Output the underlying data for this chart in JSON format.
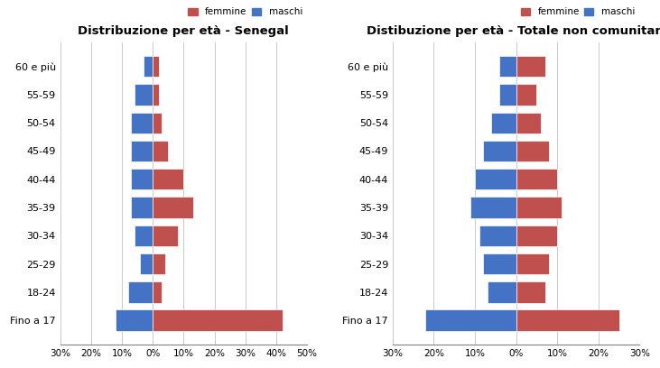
{
  "categories": [
    "Fino a 17",
    "18-24",
    "25-29",
    "30-34",
    "35-39",
    "40-44",
    "45-49",
    "50-54",
    "55-59",
    "60 e più"
  ],
  "senegal_maschi": [
    12,
    8,
    4,
    6,
    7,
    7,
    7,
    7,
    6,
    3
  ],
  "senegal_femmine": [
    42,
    3,
    4,
    8,
    13,
    10,
    5,
    3,
    2,
    2
  ],
  "totale_maschi": [
    22,
    7,
    8,
    9,
    11,
    10,
    8,
    6,
    4,
    4
  ],
  "totale_femmine": [
    25,
    7,
    8,
    10,
    11,
    10,
    8,
    6,
    5,
    7
  ],
  "title_senegal": "Distribuzione per età - Senegal",
  "title_totale": "Distibuzione per età - Totale non comunitari",
  "color_maschi": "#4472C4",
  "color_femmine": "#C0504D",
  "senegal_xlim": [
    -30,
    50
  ],
  "senegal_xticks": [
    -30,
    -20,
    -10,
    0,
    10,
    20,
    30,
    40,
    50
  ],
  "senegal_xticklabels": [
    "30%",
    "20%",
    "10%",
    "0%",
    "10%",
    "20%",
    "30%",
    "40%",
    "50%"
  ],
  "totale_xlim": [
    -30,
    30
  ],
  "totale_xticks": [
    -30,
    -20,
    -10,
    0,
    10,
    20,
    30
  ],
  "totale_xticklabels": [
    "30%",
    "20%",
    "10%",
    "0%",
    "10%",
    "20%",
    "30%"
  ]
}
